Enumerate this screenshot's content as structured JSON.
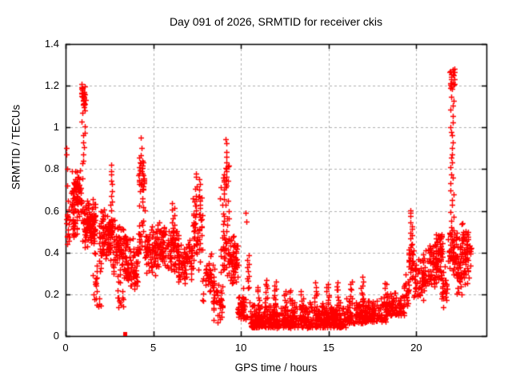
{
  "chart_data": {
    "type": "scatter",
    "title": "Day 091 of 2026, SRMTID for receiver ckis",
    "xlabel": "GPS time / hours",
    "ylabel": "SRMTID / TECUs",
    "xlim": [
      0,
      24
    ],
    "ylim": [
      0,
      1.4
    ],
    "x_tick_values": [
      0,
      5,
      10,
      15,
      20
    ],
    "x_tick_labels": [
      "0",
      "5",
      "10",
      "15",
      "20"
    ],
    "y_tick_values": [
      0,
      0.2,
      0.4,
      0.6,
      0.8,
      1.0,
      1.2,
      1.4
    ],
    "y_tick_labels": [
      "0",
      "0.2",
      "0.4",
      "0.6",
      "0.8",
      "1",
      "1.2",
      "1.4"
    ],
    "grid": "dashed-major",
    "grid_color": "#b0b0b0",
    "axis_color": "#000000",
    "background_color": "#ffffff",
    "marker": "plus",
    "marker_color": "#ff0000",
    "marker_size_px": 7,
    "notable_peaks": [
      [
        1.0,
        1.22
      ],
      [
        2.62,
        0.82
      ],
      [
        4.3,
        0.95
      ],
      [
        7.5,
        0.78
      ],
      [
        9.15,
        0.95
      ],
      [
        10.4,
        0.59
      ],
      [
        19.7,
        0.61
      ],
      [
        22.05,
        1.29
      ]
    ],
    "seed": 1337,
    "clusters": [
      [
        0.02,
        0.3,
        0.44,
        0.62,
        20,
        "u"
      ],
      [
        0.3,
        0.95,
        0.55,
        0.82,
        75,
        "c"
      ],
      [
        0.35,
        0.65,
        0.45,
        0.6,
        25,
        "c"
      ],
      [
        0.9,
        1.15,
        1.08,
        1.22,
        24,
        "c"
      ],
      [
        0.95,
        1.7,
        0.42,
        0.66,
        115,
        "c"
      ],
      [
        1.55,
        2.0,
        0.13,
        0.42,
        26,
        "u"
      ],
      [
        1.9,
        2.6,
        0.35,
        0.62,
        85,
        "c"
      ],
      [
        2.5,
        2.78,
        0.45,
        0.62,
        20,
        "c"
      ],
      [
        2.7,
        3.45,
        0.27,
        0.55,
        75,
        "c"
      ],
      [
        2.95,
        3.3,
        0.13,
        0.27,
        13,
        "u"
      ],
      [
        3.4,
        4.15,
        0.22,
        0.5,
        85,
        "c"
      ],
      [
        4.15,
        4.5,
        0.55,
        0.93,
        38,
        "c"
      ],
      [
        4.12,
        4.48,
        0.4,
        0.58,
        18,
        "u"
      ],
      [
        4.5,
        5.2,
        0.28,
        0.55,
        65,
        "c"
      ],
      [
        5.15,
        6.45,
        0.3,
        0.56,
        135,
        "c"
      ],
      [
        6.4,
        7.25,
        0.24,
        0.5,
        78,
        "c"
      ],
      [
        7.25,
        7.8,
        0.3,
        0.72,
        55,
        "c"
      ],
      [
        7.8,
        8.5,
        0.15,
        0.42,
        45,
        "c"
      ],
      [
        8.4,
        8.95,
        0.05,
        0.3,
        40,
        "c"
      ],
      [
        9.0,
        9.35,
        0.45,
        0.82,
        28,
        "u"
      ],
      [
        8.95,
        9.4,
        0.28,
        0.5,
        35,
        "c"
      ],
      [
        9.35,
        9.85,
        0.22,
        0.5,
        55,
        "c"
      ],
      [
        9.8,
        10.35,
        0.08,
        0.25,
        50,
        "b"
      ],
      [
        10.5,
        16.0,
        0.04,
        0.17,
        620,
        "b"
      ],
      [
        16.0,
        17.15,
        0.06,
        0.19,
        115,
        "b"
      ],
      [
        17.1,
        18.3,
        0.07,
        0.19,
        105,
        "b"
      ],
      [
        18.2,
        19.35,
        0.1,
        0.23,
        105,
        "b"
      ],
      [
        19.3,
        19.6,
        0.13,
        0.3,
        24,
        "c"
      ],
      [
        19.55,
        19.85,
        0.25,
        0.46,
        30,
        "c"
      ],
      [
        19.85,
        20.45,
        0.14,
        0.4,
        48,
        "c"
      ],
      [
        20.4,
        21.15,
        0.2,
        0.47,
        70,
        "c"
      ],
      [
        21.1,
        21.5,
        0.26,
        0.54,
        60,
        "c"
      ],
      [
        21.45,
        21.75,
        0.13,
        0.36,
        26,
        "c"
      ],
      [
        21.8,
        22.3,
        0.27,
        0.55,
        58,
        "c"
      ],
      [
        21.92,
        22.18,
        1.17,
        1.29,
        22,
        "c"
      ],
      [
        22.3,
        22.6,
        0.18,
        0.47,
        38,
        "c"
      ],
      [
        22.55,
        23.0,
        0.22,
        0.55,
        58,
        "c"
      ],
      [
        22.95,
        23.12,
        0.25,
        0.5,
        12,
        "u"
      ]
    ],
    "chains": [
      [
        1.02,
        0.82,
        1.17,
        14,
        0.1
      ],
      [
        2.62,
        0.6,
        0.82,
        10,
        0.06
      ],
      [
        6.15,
        0.5,
        0.64,
        8,
        0.08
      ],
      [
        7.45,
        0.6,
        0.78,
        8,
        0.05
      ],
      [
        7.62,
        0.58,
        0.76,
        7,
        0.05
      ],
      [
        8.9,
        0.3,
        0.75,
        12,
        0.1
      ],
      [
        9.15,
        0.8,
        0.95,
        6,
        0.06
      ],
      [
        10.42,
        0.22,
        0.38,
        10,
        0.06
      ],
      [
        11.0,
        0.15,
        0.24,
        6,
        0.06
      ],
      [
        11.45,
        0.16,
        0.27,
        8,
        0.08
      ],
      [
        11.95,
        0.16,
        0.26,
        8,
        0.08
      ],
      [
        12.5,
        0.15,
        0.22,
        6,
        0.08
      ],
      [
        12.85,
        0.15,
        0.22,
        6,
        0.08
      ],
      [
        13.5,
        0.14,
        0.21,
        6,
        0.08
      ],
      [
        14.25,
        0.15,
        0.25,
        8,
        0.08
      ],
      [
        14.95,
        0.16,
        0.25,
        8,
        0.08
      ],
      [
        15.5,
        0.15,
        0.26,
        8,
        0.08
      ],
      [
        16.25,
        0.16,
        0.27,
        7,
        0.08
      ],
      [
        16.9,
        0.17,
        0.28,
        8,
        0.08
      ],
      [
        18.25,
        0.18,
        0.26,
        6,
        0.08
      ],
      [
        19.7,
        0.44,
        0.61,
        10,
        0.06
      ],
      [
        22.05,
        0.55,
        1.18,
        26,
        0.1
      ]
    ],
    "singles": [
      [
        0.05,
        0.9
      ],
      [
        0.04,
        0.87
      ],
      [
        0.08,
        0.8
      ],
      [
        0.1,
        0.72
      ],
      [
        0.12,
        0.65
      ],
      [
        4.3,
        0.95
      ],
      [
        4.34,
        0.9
      ],
      [
        10.28,
        0.59
      ],
      [
        10.33,
        0.55
      ]
    ],
    "square_points": [
      [
        3.36,
        0.012
      ]
    ]
  }
}
